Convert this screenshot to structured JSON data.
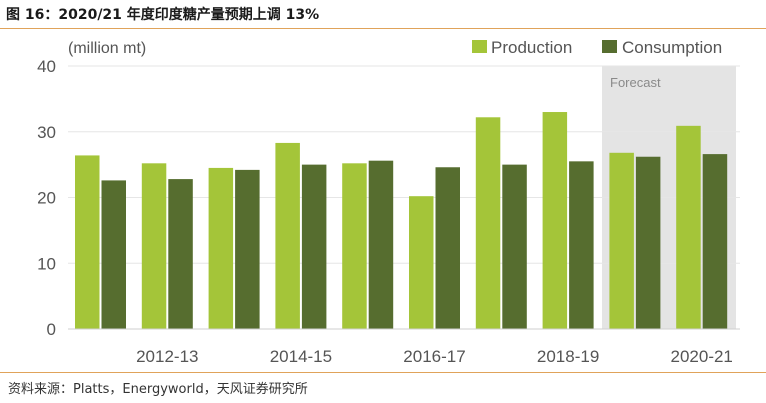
{
  "figure_title": "图 16：2020/21 年度印度糖产量预期上调 13%",
  "source": "资料来源：Platts，Energyworld，天风证券研究所",
  "colors": {
    "production": "#a4c539",
    "consumption": "#566d2f",
    "forecast_bg": "#e4e4e4",
    "rule": "#e0a35a",
    "axis_text": "#555555"
  },
  "chart_data": {
    "type": "bar",
    "ylabel": "(million mt)",
    "ylim": [
      0,
      40
    ],
    "yticks": [
      "0",
      "10",
      "20",
      "30",
      "40"
    ],
    "xtick_labels": [
      "2012-13",
      "2014-15",
      "2016-17",
      "2018-19",
      "2020-21"
    ],
    "forecast_label": "Forecast",
    "legend_position": "top-right",
    "grid": true,
    "series": [
      {
        "name": "Production",
        "values": [
          26.4,
          25.2,
          24.5,
          28.3,
          25.2,
          20.2,
          32.2,
          33.0,
          26.8,
          30.9
        ]
      },
      {
        "name": "Consumption",
        "values": [
          22.6,
          22.8,
          24.2,
          25.0,
          25.6,
          24.6,
          25.0,
          25.5,
          26.2,
          26.6
        ]
      }
    ]
  }
}
